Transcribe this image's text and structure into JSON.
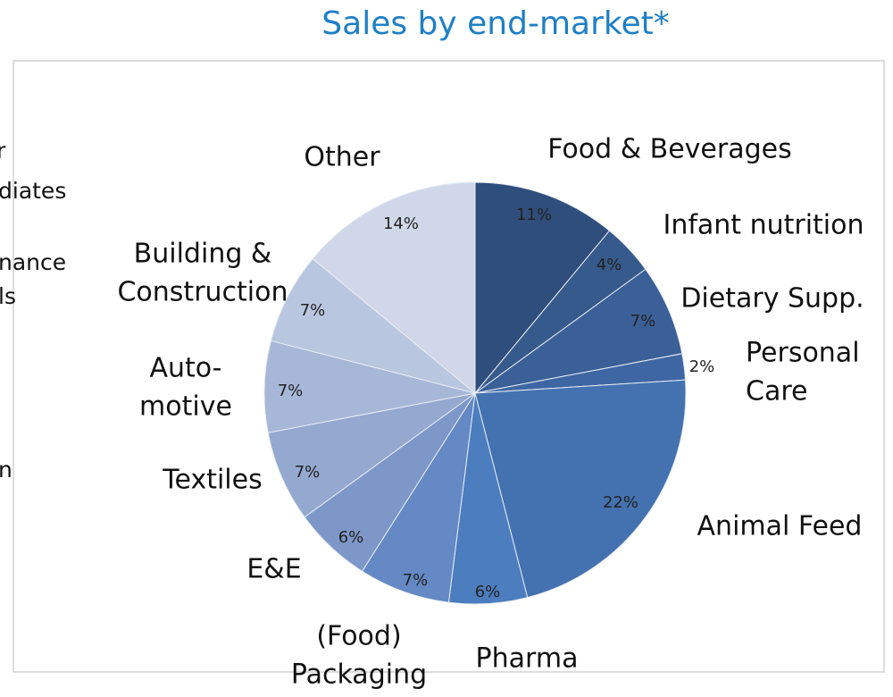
{
  "chart_data": {
    "type": "pie",
    "title": "Sales by end-market*",
    "categories": [
      "Food & Beverages",
      "Infant nutrition",
      "Dietary Supp.",
      "Personal\nCare",
      "Animal Feed",
      "Pharma",
      "(Food)\nPackaging",
      "E&E",
      "Textiles",
      "Auto-\nmotive",
      "Building &\nConstruction",
      "Other"
    ],
    "values": [
      11,
      4,
      7,
      2,
      22,
      6,
      7,
      6,
      7,
      7,
      7,
      14
    ],
    "value_labels": [
      "11%",
      "4%",
      "7%",
      "2%",
      "22%",
      "6%",
      "7%",
      "6%",
      "7%",
      "7%",
      "7%",
      "14%"
    ],
    "colors": [
      "#2f4e7c",
      "#375a8c",
      "#3b6098",
      "#3e66a2",
      "#4472b0",
      "#4c7dbf",
      "#6489c4",
      "#7d97c8",
      "#94a8d0",
      "#a7b7d8",
      "#b9c6e0",
      "#d0d7e8"
    ]
  },
  "cropped_texts": [
    "r",
    "diates",
    "nance",
    "ls",
    "n"
  ]
}
